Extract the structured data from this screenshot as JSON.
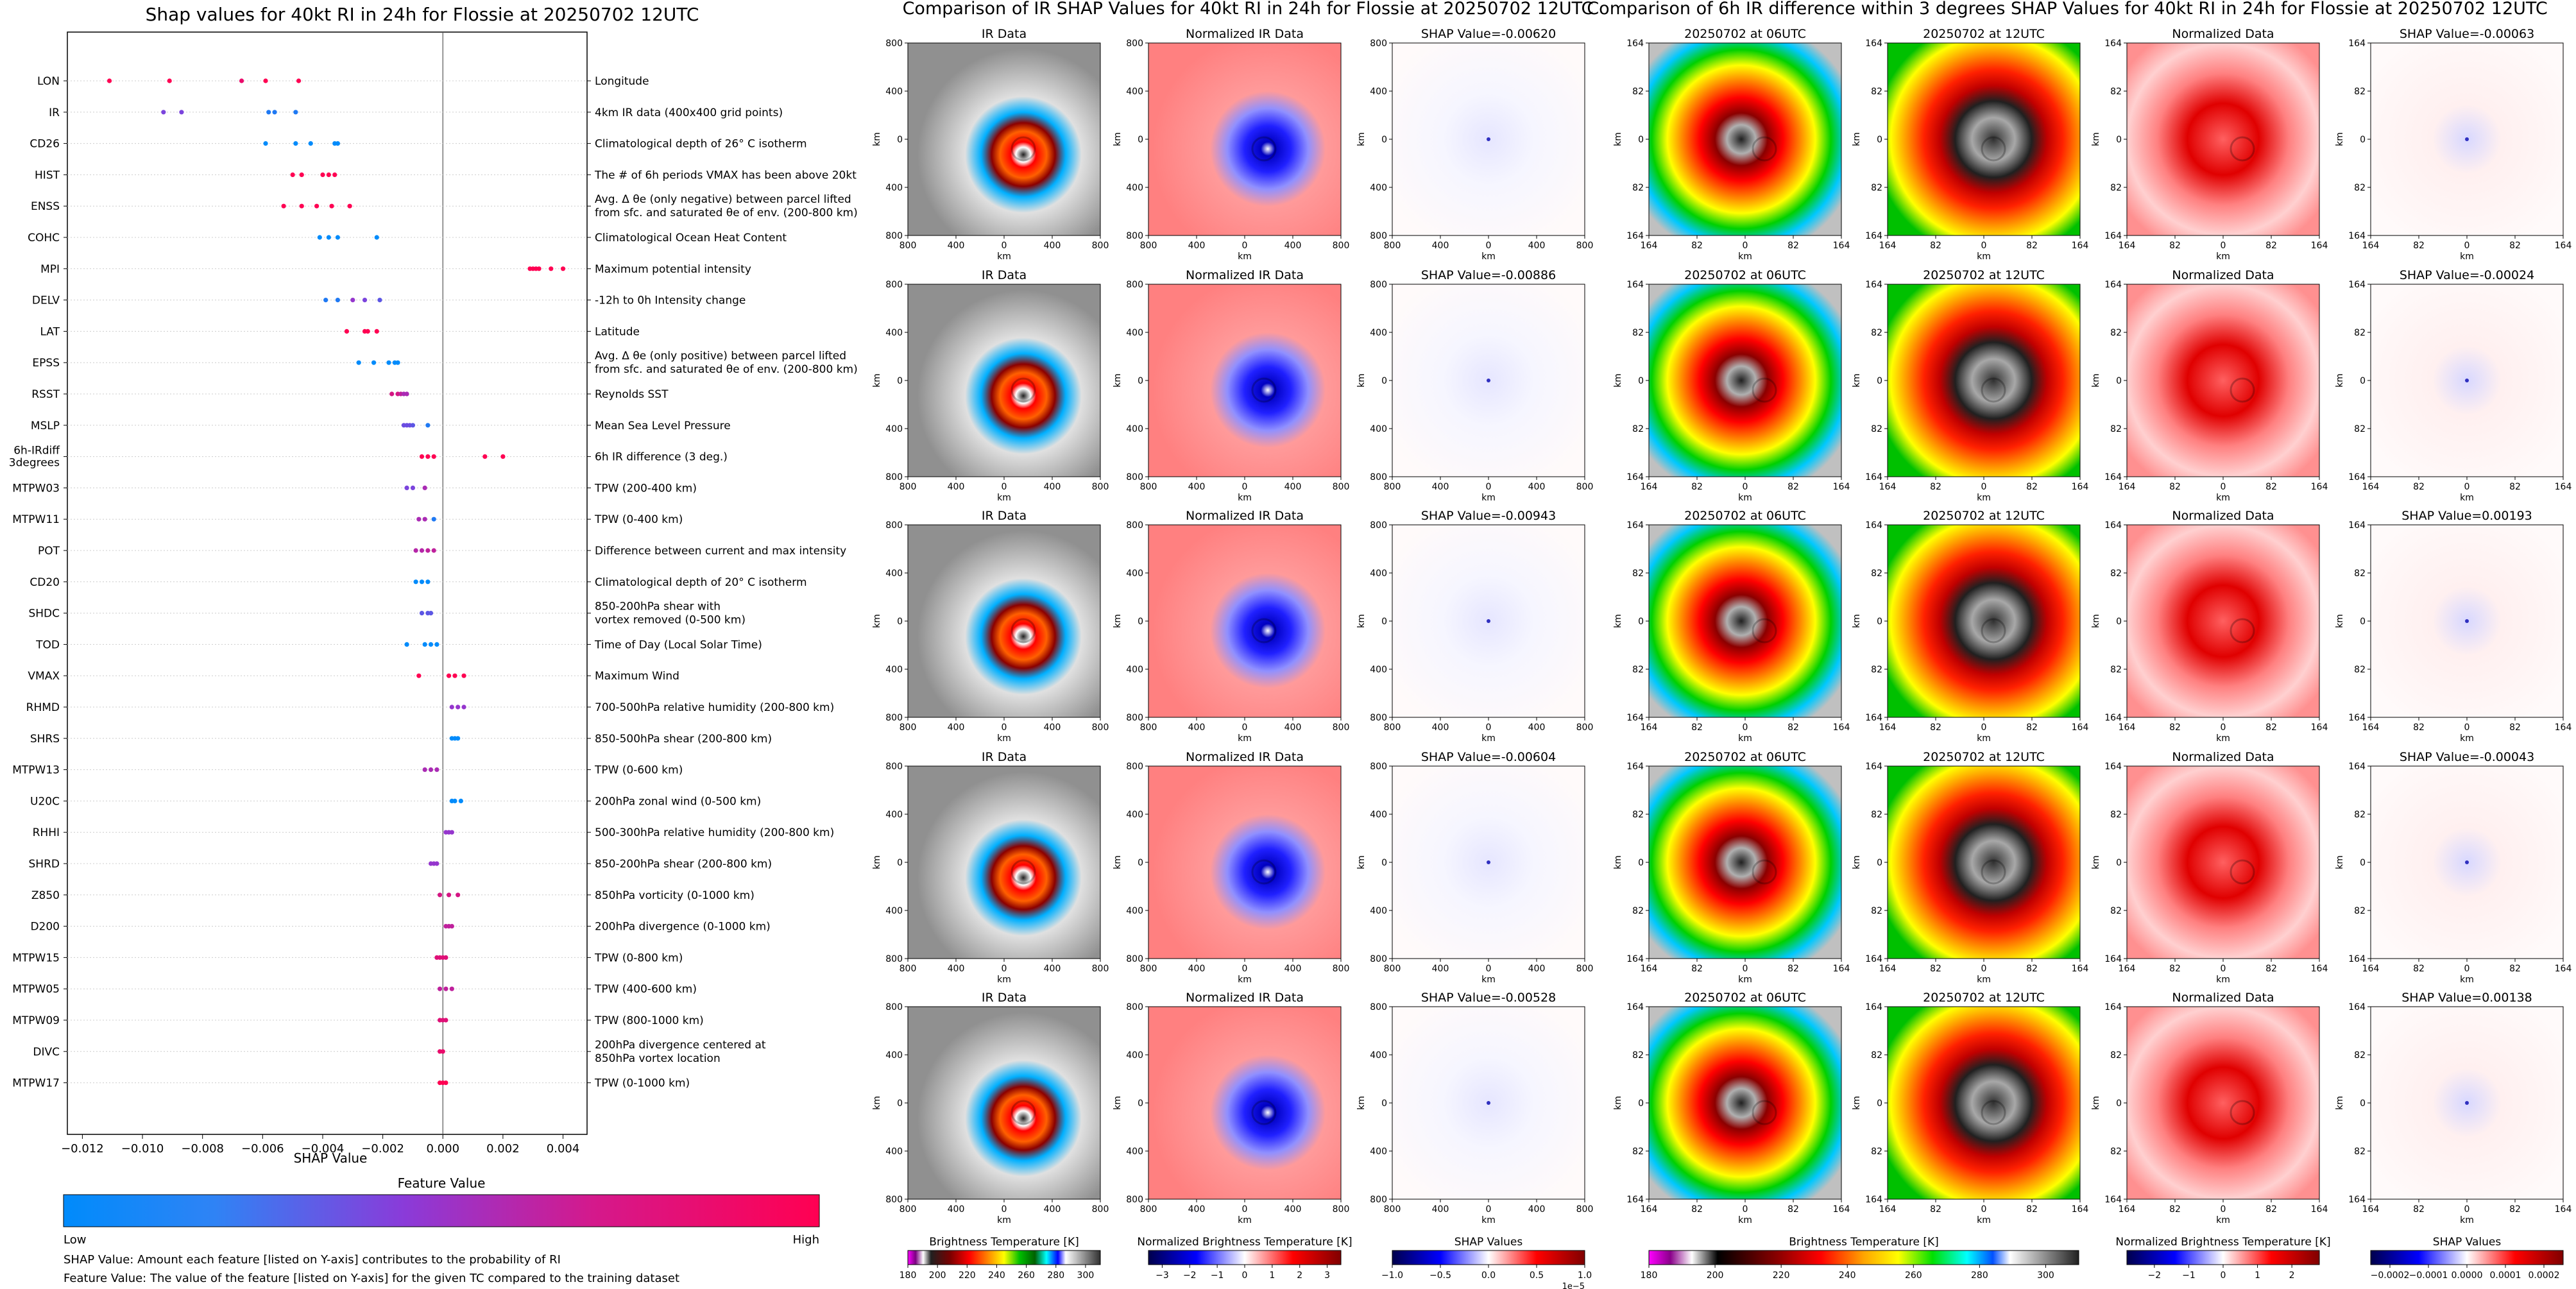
{
  "colors": {
    "feature_low": "#1e88ff",
    "feature_high": "#ff0060",
    "axis": "#000000",
    "zero_line": "#555555"
  },
  "shap_panel": {
    "title": "Shap values for 40kt RI in 24h for Flossie at 20250702 12UTC",
    "xlabel": "SHAP Value",
    "colorbar_title": "Feature Value",
    "colorbar_low": "Low",
    "colorbar_high": "High",
    "footnote1": "SHAP Value: Amount each feature [listed on Y-axis] contributes to the probability of RI",
    "footnote2": "Feature Value: The value of the feature [listed on Y-axis] for the given TC compared to the training dataset"
  },
  "chart_data": [
    {
      "type": "scatter",
      "title": "Shap values for 40kt RI in 24h for Flossie at 20250702 12UTC",
      "xlabel": "SHAP Value",
      "xlim": [
        -0.0125,
        0.0048
      ],
      "xticks": [
        -0.012,
        -0.01,
        -0.008,
        -0.006,
        -0.004,
        -0.002,
        0.0,
        0.002,
        0.004
      ],
      "xtick_labels": [
        "−0.012",
        "−0.010",
        "−0.008",
        "−0.006",
        "−0.004",
        "−0.002",
        "0.000",
        "0.002",
        "0.004"
      ],
      "features": [
        {
          "name": "LON",
          "desc": "Longitude",
          "x": [
            -0.0111,
            -0.0091,
            -0.0067,
            -0.0059,
            -0.0048
          ],
          "v": [
            1,
            1,
            0.9,
            1,
            1
          ]
        },
        {
          "name": "IR",
          "desc": "4km IR data (400x400 grid points)",
          "x": [
            -0.0093,
            -0.0087,
            -0.0058,
            -0.0056,
            -0.0049
          ],
          "v": [
            0.4,
            0.4,
            0.1,
            0.1,
            0.1
          ]
        },
        {
          "name": "CD26",
          "desc": "Climatological depth of 26° C isotherm",
          "x": [
            -0.0059,
            -0.0049,
            -0.0044,
            -0.0036,
            -0.0035
          ],
          "v": [
            0,
            0,
            0,
            0,
            0
          ]
        },
        {
          "name": "HIST",
          "desc": "The # of 6h periods VMAX has been above 20kt",
          "x": [
            -0.005,
            -0.0047,
            -0.004,
            -0.0038,
            -0.0036
          ],
          "v": [
            1,
            1,
            1,
            1,
            1
          ]
        },
        {
          "name": "ENSS",
          "desc": "Avg. Δ θe (only negative) between parcel lifted|from sfc. and saturated θe of env. (200-800 km)",
          "x": [
            -0.0053,
            -0.0047,
            -0.0042,
            -0.0037,
            -0.0031
          ],
          "v": [
            1,
            1,
            1,
            1,
            1
          ]
        },
        {
          "name": "COHC",
          "desc": "Climatological Ocean Heat Content",
          "x": [
            -0.0041,
            -0.0038,
            -0.0035,
            -0.0022
          ],
          "v": [
            0,
            0,
            0,
            0
          ]
        },
        {
          "name": "MPI",
          "desc": "Maximum potential intensity",
          "x": [
            0.0029,
            0.003,
            0.0031,
            0.0032,
            0.0036,
            0.004
          ],
          "v": [
            1,
            1,
            1,
            1,
            1,
            1
          ]
        },
        {
          "name": "DELV",
          "desc": "-12h to 0h Intensity change",
          "x": [
            -0.0039,
            -0.0035,
            -0.003,
            -0.0026,
            -0.0021
          ],
          "v": [
            0.1,
            0.1,
            0.5,
            0.4,
            0.3
          ]
        },
        {
          "name": "LAT",
          "desc": "Latitude",
          "x": [
            -0.0032,
            -0.0026,
            -0.0025,
            -0.0022
          ],
          "v": [
            1,
            1,
            1,
            1
          ]
        },
        {
          "name": "EPSS",
          "desc": "Avg. Δ θe (only positive) between parcel lifted|from sfc. and saturated θe of env. (200-800 km)",
          "x": [
            -0.0028,
            -0.0023,
            -0.0018,
            -0.0016,
            -0.0015
          ],
          "v": [
            0,
            0,
            0,
            0,
            0
          ]
        },
        {
          "name": "RSST",
          "desc": "Reynolds SST",
          "x": [
            -0.0017,
            -0.0015,
            -0.0014,
            -0.0013,
            -0.0012
          ],
          "v": [
            0.8,
            0.8,
            0.7,
            0.6,
            0.6
          ]
        },
        {
          "name": "MSLP",
          "desc": "Mean Sea Level Pressure",
          "x": [
            -0.0013,
            -0.0012,
            -0.0011,
            -0.001,
            -0.0005
          ],
          "v": [
            0.35,
            0.35,
            0.35,
            0.3,
            0.1
          ]
        },
        {
          "name": "6h-IRdiff 3degrees",
          "desc": "6h IR difference (3 deg.)",
          "x": [
            -0.0007,
            -0.0005,
            -0.0003,
            0.0014,
            0.002
          ],
          "v": [
            1,
            1,
            1,
            1,
            1
          ]
        },
        {
          "name": "MTPW03",
          "desc": "TPW (200-400 km)",
          "x": [
            -0.0012,
            -0.001,
            -0.0006
          ],
          "v": [
            0.4,
            0.4,
            0.6
          ]
        },
        {
          "name": "MTPW11",
          "desc": "TPW (0-400 km)",
          "x": [
            -0.0008,
            -0.0006,
            -0.0003
          ],
          "v": [
            0.6,
            0.6,
            0.1
          ]
        },
        {
          "name": "POT",
          "desc": "Difference between current and max intensity",
          "x": [
            -0.0009,
            -0.0007,
            -0.0005,
            -0.0003
          ],
          "v": [
            0.65,
            0.65,
            0.7,
            0.7
          ]
        },
        {
          "name": "CD20",
          "desc": "Climatological depth of 20° C isotherm",
          "x": [
            -0.0009,
            -0.0007,
            -0.0005
          ],
          "v": [
            0,
            0,
            0
          ]
        },
        {
          "name": "SHDC",
          "desc": "850-200hPa shear with|vortex removed (0-500 km)",
          "x": [
            -0.0007,
            -0.0005,
            -0.0004
          ],
          "v": [
            0.3,
            0.3,
            0.3
          ]
        },
        {
          "name": "TOD",
          "desc": "Time of Day (Local Solar Time)",
          "x": [
            -0.0012,
            -0.0006,
            -0.0004,
            -0.0002
          ],
          "v": [
            0,
            0,
            0,
            0
          ]
        },
        {
          "name": "VMAX",
          "desc": "Maximum Wind",
          "x": [
            -0.0008,
            0.0002,
            0.0004,
            0.0007
          ],
          "v": [
            1,
            1,
            1,
            1
          ]
        },
        {
          "name": "RHMD",
          "desc": "700-500hPa relative humidity (200-800 km)",
          "x": [
            0.0003,
            0.0005,
            0.0007
          ],
          "v": [
            0.5,
            0.5,
            0.5
          ]
        },
        {
          "name": "SHRS",
          "desc": "850-500hPa shear (200-800 km)",
          "x": [
            0.0003,
            0.0004,
            0.0005
          ],
          "v": [
            0,
            0,
            0
          ]
        },
        {
          "name": "MTPW13",
          "desc": "TPW (0-600 km)",
          "x": [
            -0.0006,
            -0.0004,
            -0.0002
          ],
          "v": [
            0.6,
            0.6,
            0.6
          ]
        },
        {
          "name": "U20C",
          "desc": "200hPa zonal wind (0-500 km)",
          "x": [
            0.0003,
            0.0004,
            0.0006
          ],
          "v": [
            0,
            0,
            0
          ]
        },
        {
          "name": "RHHI",
          "desc": "500-300hPa relative humidity (200-800 km)",
          "x": [
            0.0001,
            0.0002,
            0.0003
          ],
          "v": [
            0.5,
            0.5,
            0.5
          ]
        },
        {
          "name": "SHRD",
          "desc": "850-200hPa shear (200-800 km)",
          "x": [
            -0.0004,
            -0.0003,
            -0.0002
          ],
          "v": [
            0.5,
            0.5,
            0.5
          ]
        },
        {
          "name": "Z850",
          "desc": "850hPa vorticity (0-1000 km)",
          "x": [
            -0.0001,
            0.0002,
            0.0005
          ],
          "v": [
            0.8,
            0.8,
            0.8
          ]
        },
        {
          "name": "D200",
          "desc": "200hPa divergence (0-1000 km)",
          "x": [
            0.0001,
            0.0002,
            0.0003
          ],
          "v": [
            0.7,
            0.7,
            0.7
          ]
        },
        {
          "name": "MTPW15",
          "desc": "TPW (0-800 km)",
          "x": [
            -0.0002,
            -0.0001,
            0.0,
            0.0001
          ],
          "v": [
            0.85,
            0.85,
            0.85,
            0.85
          ]
        },
        {
          "name": "MTPW05",
          "desc": "TPW (400-600 km)",
          "x": [
            -0.0001,
            0.0001,
            0.0003
          ],
          "v": [
            0.7,
            0.7,
            0.7
          ]
        },
        {
          "name": "MTPW09",
          "desc": "TPW (800-1000 km)",
          "x": [
            -0.0001,
            0.0,
            0.0001
          ],
          "v": [
            0.85,
            0.85,
            0.85
          ]
        },
        {
          "name": "DIVC",
          "desc": "200hPa divergence centered at|850hPa vortex location",
          "x": [
            -0.0001,
            0.0
          ],
          "v": [
            0.9,
            0.9
          ]
        },
        {
          "name": "MTPW17",
          "desc": "TPW (0-1000 km)",
          "x": [
            -0.0001,
            0.0,
            0.0001
          ],
          "v": [
            1,
            1,
            1
          ]
        }
      ]
    },
    {
      "type": "heatmap",
      "title": "Comparison of IR SHAP Values for 40kt RI in 24h for Flossie at 20250702 12UTC",
      "columns": [
        {
          "key": "ir",
          "title": "IR Data",
          "colormap": "ir"
        },
        {
          "key": "nir",
          "title": "Normalized IR Data",
          "colormap": "bwr"
        },
        {
          "key": "shap",
          "title": "SHAP Value",
          "colormap": "bwr_light"
        }
      ],
      "shap_values": [
        "-0.00620",
        "-0.00886",
        "-0.00943",
        "-0.00604",
        "-0.00528"
      ],
      "xlabel": "km",
      "ylabel": "km",
      "xticks": [
        "800",
        "400",
        "0",
        "400",
        "800"
      ],
      "yticks": [
        "800",
        "400",
        "0",
        "400",
        "800"
      ],
      "colorbars": [
        {
          "label": "Brightness Temperature [K]",
          "ticks": [
            "180",
            "200",
            "220",
            "240",
            "260",
            "280",
            "300"
          ],
          "colormap": "ir",
          "range": [
            180,
            310
          ]
        },
        {
          "label": "Normalized Brightness Temperature [K]",
          "ticks": [
            "−3",
            "−2",
            "−1",
            "0",
            "1",
            "2",
            "3"
          ],
          "colormap": "bwr",
          "range": [
            -3.5,
            3.5
          ]
        },
        {
          "label": "SHAP Values",
          "ticks": [
            "−1.0",
            "−0.5",
            "0.0",
            "0.5",
            "1.0"
          ],
          "colormap": "bwr",
          "range": [
            -1,
            1
          ],
          "exponent": "1e−5"
        }
      ]
    },
    {
      "type": "heatmap",
      "title": "Comparison of 6h IR difference within 3 degrees SHAP Values for 40kt RI in 24h for Flossie at 20250702 12UTC",
      "columns": [
        {
          "key": "ir06",
          "title": "20250702 at 06UTC",
          "colormap": "rainbow"
        },
        {
          "key": "ir12",
          "title": "20250702 at 12UTC",
          "colormap": "rainbow"
        },
        {
          "key": "norm",
          "title": "Normalized Data",
          "colormap": "reds"
        },
        {
          "key": "shap",
          "title": "SHAP Value",
          "colormap": "bwr_light"
        }
      ],
      "shap_values": [
        "-0.00063",
        "-0.00024",
        "0.00193",
        "-0.00043",
        "0.00138"
      ],
      "xlabel": "km",
      "ylabel": "km",
      "xticks": [
        "164",
        "82",
        "0",
        "82",
        "164"
      ],
      "yticks": [
        "164",
        "82",
        "0",
        "82",
        "164"
      ],
      "colorbars": [
        {
          "label": "Brightness Temperature [K]",
          "ticks": [
            "180",
            "200",
            "220",
            "240",
            "260",
            "280",
            "300"
          ],
          "colormap": "rainbow_ir",
          "range": [
            180,
            310
          ]
        },
        {
          "label": "Normalized Brightness Temperature [K]",
          "ticks": [
            "−2",
            "−1",
            "0",
            "1",
            "2"
          ],
          "colormap": "bwr",
          "range": [
            -2.8,
            2.8
          ]
        },
        {
          "label": "SHAP Values",
          "ticks": [
            "−0.0002",
            "−0.0001",
            "0.0000",
            "0.0001",
            "0.0002"
          ],
          "colormap": "bwr",
          "range": [
            -0.00025,
            0.00025
          ]
        }
      ]
    }
  ]
}
